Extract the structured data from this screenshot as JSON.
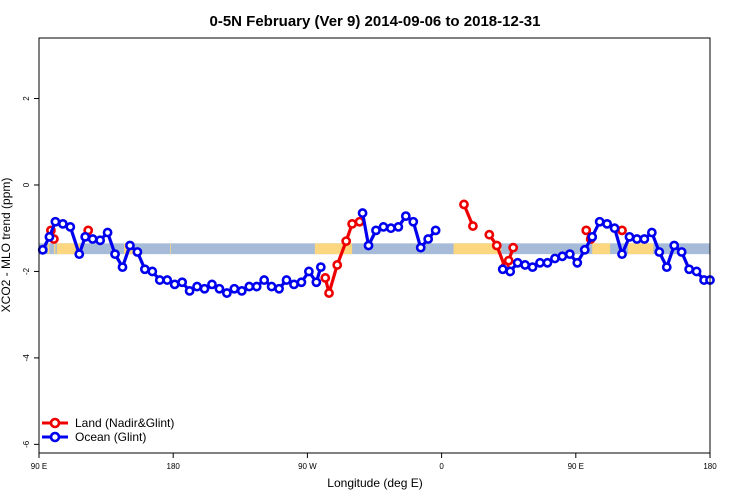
{
  "chart_data": {
    "type": "line",
    "title": "0-5N February (Ver 9)   2014-09-06 to 2018-12-31",
    "xlabel": "Longitude (deg E)",
    "ylabel": "XCO2 - MLO trend (ppm)",
    "xlim": [
      90,
      540
    ],
    "ylim": [
      -6.2,
      3.4
    ],
    "x_ticks": [
      {
        "value": 90,
        "label": "90 E"
      },
      {
        "value": 180,
        "label": "180"
      },
      {
        "value": 270,
        "label": "90 W"
      },
      {
        "value": 360,
        "label": "0"
      },
      {
        "value": 450,
        "label": "90 E"
      },
      {
        "value": 540,
        "label": "180"
      }
    ],
    "y_ticks": [
      {
        "value": 2,
        "label": "2"
      },
      {
        "value": 0,
        "label": "0"
      },
      {
        "value": -2,
        "label": "-2"
      },
      {
        "value": -4,
        "label": "-4"
      },
      {
        "value": -6,
        "label": "-6"
      }
    ],
    "band": {
      "y_low": -1.6,
      "y_high": -1.35,
      "ocean_color": "#a5bbd8",
      "land_color": "#fcd77f",
      "land_segments": [
        [
          110,
          112.5
        ],
        [
          115,
          117.5
        ],
        [
          147,
          149.5
        ],
        [
          147.5,
          152
        ],
        [
          148,
          153
        ],
        [
          275,
          300
        ],
        [
          102,
          115
        ],
        [
          96,
          97
        ],
        [
          100,
          101
        ],
        [
          178,
          178.5
        ],
        [
          368,
          400
        ],
        [
          461,
          473
        ],
        [
          485,
          487
        ],
        [
          485,
          502
        ]
      ]
    },
    "series": [
      {
        "name": "Land (Nadir&Glint)",
        "color": "#ee0000",
        "segments": [
          [
            [
              98,
              -1.05
            ],
            [
              100,
              -1.25
            ]
          ],
          [
            [
              123,
              -1.05
            ]
          ],
          [
            [
              282,
              -2.15
            ],
            [
              284.5,
              -2.5
            ],
            [
              290,
              -1.85
            ],
            [
              296,
              -1.3
            ],
            [
              300,
              -0.9
            ],
            [
              305,
              -0.85
            ]
          ],
          [
            [
              375,
              -0.45
            ],
            [
              381,
              -0.95
            ]
          ],
          [
            [
              392,
              -1.15
            ],
            [
              397,
              -1.4
            ],
            [
              402.5,
              -1.9
            ],
            [
              405,
              -1.75
            ],
            [
              408,
              -1.45
            ]
          ],
          [
            [
              457,
              -1.05
            ],
            [
              460,
              -1.25
            ]
          ],
          [
            [
              481,
              -1.05
            ]
          ]
        ]
      },
      {
        "name": "Ocean (Glint)",
        "color": "#0000ee",
        "segments": [
          [
            [
              92.5,
              -1.5
            ],
            [
              97,
              -1.2
            ],
            [
              101,
              -0.85
            ],
            [
              106,
              -0.9
            ],
            [
              111,
              -0.97
            ],
            [
              117,
              -1.6
            ],
            [
              121,
              -1.2
            ],
            [
              126,
              -1.25
            ],
            [
              131,
              -1.28
            ],
            [
              136,
              -1.1
            ],
            [
              141,
              -1.6
            ],
            [
              146,
              -1.9
            ],
            [
              151,
              -1.4
            ],
            [
              156,
              -1.55
            ],
            [
              161,
              -1.95
            ],
            [
              166,
              -2.0
            ],
            [
              171,
              -2.2
            ],
            [
              176,
              -2.2
            ],
            [
              181,
              -2.3
            ],
            [
              186,
              -2.25
            ],
            [
              191,
              -2.45
            ],
            [
              196,
              -2.35
            ],
            [
              201,
              -2.4
            ],
            [
              206,
              -2.3
            ],
            [
              211,
              -2.4
            ],
            [
              216,
              -2.5
            ],
            [
              221,
              -2.4
            ],
            [
              226,
              -2.45
            ],
            [
              231,
              -2.35
            ],
            [
              236,
              -2.35
            ],
            [
              241,
              -2.2
            ],
            [
              246,
              -2.35
            ],
            [
              251,
              -2.4
            ],
            [
              256,
              -2.2
            ],
            [
              261,
              -2.3
            ],
            [
              266,
              -2.25
            ],
            [
              271,
              -2.0
            ],
            [
              276,
              -2.25
            ],
            [
              279,
              -1.9
            ]
          ],
          [
            [
              307,
              -0.65
            ],
            [
              311,
              -1.4
            ],
            [
              316,
              -1.05
            ],
            [
              321,
              -0.97
            ],
            [
              326,
              -1.0
            ],
            [
              331,
              -0.97
            ],
            [
              336,
              -0.72
            ],
            [
              341,
              -0.85
            ],
            [
              346,
              -1.45
            ],
            [
              351,
              -1.25
            ],
            [
              356,
              -1.05
            ]
          ],
          [
            [
              401,
              -1.95
            ],
            [
              406,
              -2.0
            ],
            [
              411,
              -1.8
            ],
            [
              416,
              -1.85
            ],
            [
              421,
              -1.9
            ],
            [
              426,
              -1.8
            ],
            [
              431,
              -1.8
            ],
            [
              436,
              -1.7
            ],
            [
              441,
              -1.65
            ],
            [
              446,
              -1.6
            ],
            [
              451,
              -1.8
            ],
            [
              456,
              -1.5
            ],
            [
              461,
              -1.2
            ],
            [
              466,
              -0.85
            ],
            [
              471,
              -0.9
            ],
            [
              476,
              -1.0
            ],
            [
              481,
              -1.6
            ],
            [
              486,
              -1.2
            ],
            [
              491,
              -1.25
            ],
            [
              496,
              -1.25
            ],
            [
              501,
              -1.1
            ],
            [
              506,
              -1.55
            ],
            [
              511,
              -1.9
            ],
            [
              516,
              -1.4
            ],
            [
              521,
              -1.55
            ],
            [
              526,
              -1.95
            ],
            [
              531,
              -2.0
            ],
            [
              536,
              -2.2
            ],
            [
              540,
              -2.2
            ]
          ]
        ]
      }
    ],
    "legend": {
      "placement": "bottom-left"
    }
  }
}
